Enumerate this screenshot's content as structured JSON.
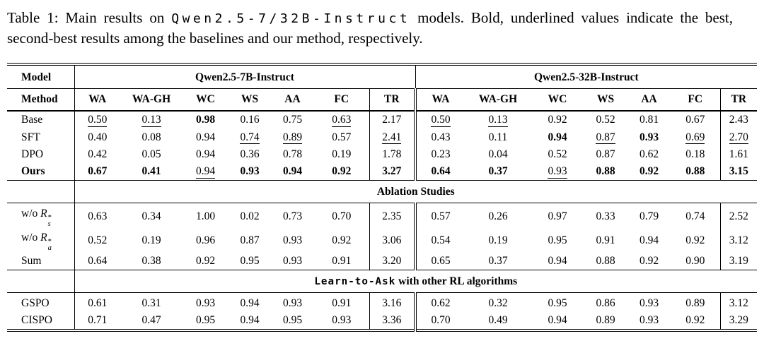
{
  "page": {
    "background_color": "#ffffff",
    "text_color": "#000000"
  },
  "caption": {
    "prefix": "Table 1: Main results on ",
    "model_code": "Qwen2.5-7/32B-Instruct",
    "suffix": " models. Bold, underlined values indicate the best, second-best results among the baselines and our method, respectively."
  },
  "table": {
    "corner_model_label": "Model",
    "corner_method_label": "Method",
    "group_headers": [
      "Qwen2.5-7B-Instruct",
      "Qwen2.5-32B-Instruct"
    ],
    "metric_headers": [
      "WA",
      "WA-GH",
      "WC",
      "WS",
      "AA",
      "FC",
      "TR"
    ],
    "sections": [
      {
        "type": "rows",
        "rows": [
          {
            "label": "Base",
            "bold": false,
            "values": [
              "0.50",
              "0.13",
              "0.98",
              "0.16",
              "0.75",
              "0.63",
              "2.17",
              "0.50",
              "0.13",
              "0.92",
              "0.52",
              "0.81",
              "0.67",
              "2.43"
            ],
            "styles": [
              "u",
              "u",
              "b",
              "",
              "",
              "u",
              "",
              "u",
              "u",
              "",
              "",
              "",
              "",
              ""
            ]
          },
          {
            "label": "SFT",
            "bold": false,
            "values": [
              "0.40",
              "0.08",
              "0.94",
              "0.74",
              "0.89",
              "0.57",
              "2.41",
              "0.43",
              "0.11",
              "0.94",
              "0.87",
              "0.93",
              "0.69",
              "2.70"
            ],
            "styles": [
              "",
              "",
              "",
              "u",
              "u",
              "",
              "u",
              "",
              "",
              "b",
              "u",
              "b",
              "u",
              "u"
            ]
          },
          {
            "label": "DPO",
            "bold": false,
            "values": [
              "0.42",
              "0.05",
              "0.94",
              "0.36",
              "0.78",
              "0.19",
              "1.78",
              "0.23",
              "0.04",
              "0.52",
              "0.87",
              "0.62",
              "0.18",
              "1.61"
            ],
            "styles": [
              "",
              "",
              "",
              "",
              "",
              "",
              "",
              "",
              "",
              "",
              "",
              "",
              "",
              ""
            ]
          },
          {
            "label": "Ours",
            "bold": true,
            "values": [
              "0.67",
              "0.41",
              "0.94",
              "0.93",
              "0.94",
              "0.92",
              "3.27",
              "0.64",
              "0.37",
              "0.93",
              "0.88",
              "0.92",
              "0.88",
              "3.15"
            ],
            "styles": [
              "b",
              "b",
              "u",
              "b",
              "b",
              "b",
              "b",
              "b",
              "b",
              "u",
              "b",
              "b",
              "b",
              "b"
            ]
          }
        ]
      },
      {
        "type": "header",
        "parts": [
          {
            "text": "Ablation Studies",
            "mono": false
          }
        ]
      },
      {
        "type": "rows",
        "rows": [
          {
            "label": "w/o ",
            "bold": false,
            "math": {
              "var": "R",
              "sup": "*",
              "sub": "s"
            },
            "values": [
              "0.63",
              "0.34",
              "1.00",
              "0.02",
              "0.73",
              "0.70",
              "2.35",
              "0.57",
              "0.26",
              "0.97",
              "0.33",
              "0.79",
              "0.74",
              "2.52"
            ],
            "styles": [
              "",
              "",
              "",
              "",
              "",
              "",
              "",
              "",
              "",
              "",
              "",
              "",
              "",
              ""
            ]
          },
          {
            "label": "w/o ",
            "bold": false,
            "math": {
              "var": "R",
              "sup": "*",
              "sub": "a"
            },
            "values": [
              "0.52",
              "0.19",
              "0.96",
              "0.87",
              "0.93",
              "0.92",
              "3.06",
              "0.54",
              "0.19",
              "0.95",
              "0.91",
              "0.94",
              "0.92",
              "3.12"
            ],
            "styles": [
              "",
              "",
              "",
              "",
              "",
              "",
              "",
              "",
              "",
              "",
              "",
              "",
              "",
              ""
            ]
          },
          {
            "label": "Sum",
            "bold": false,
            "values": [
              "0.64",
              "0.38",
              "0.92",
              "0.95",
              "0.93",
              "0.91",
              "3.20",
              "0.65",
              "0.37",
              "0.94",
              "0.88",
              "0.92",
              "0.90",
              "3.19"
            ],
            "styles": [
              "",
              "",
              "",
              "",
              "",
              "",
              "",
              "",
              "",
              "",
              "",
              "",
              "",
              ""
            ]
          }
        ]
      },
      {
        "type": "header",
        "parts": [
          {
            "text": "Learn-to-Ask",
            "mono": true
          },
          {
            "text": " with other RL algorithms",
            "mono": false
          }
        ]
      },
      {
        "type": "rows",
        "rows": [
          {
            "label": "GSPO",
            "bold": false,
            "values": [
              "0.61",
              "0.31",
              "0.93",
              "0.94",
              "0.93",
              "0.91",
              "3.16",
              "0.62",
              "0.32",
              "0.95",
              "0.86",
              "0.93",
              "0.89",
              "3.12"
            ],
            "styles": [
              "",
              "",
              "",
              "",
              "",
              "",
              "",
              "",
              "",
              "",
              "",
              "",
              "",
              ""
            ]
          },
          {
            "label": "CISPO",
            "bold": false,
            "values": [
              "0.71",
              "0.47",
              "0.95",
              "0.94",
              "0.95",
              "0.93",
              "3.36",
              "0.70",
              "0.49",
              "0.94",
              "0.89",
              "0.93",
              "0.92",
              "3.29"
            ],
            "styles": [
              "",
              "",
              "",
              "",
              "",
              "",
              "",
              "",
              "",
              "",
              "",
              "",
              "",
              ""
            ]
          }
        ]
      }
    ]
  }
}
